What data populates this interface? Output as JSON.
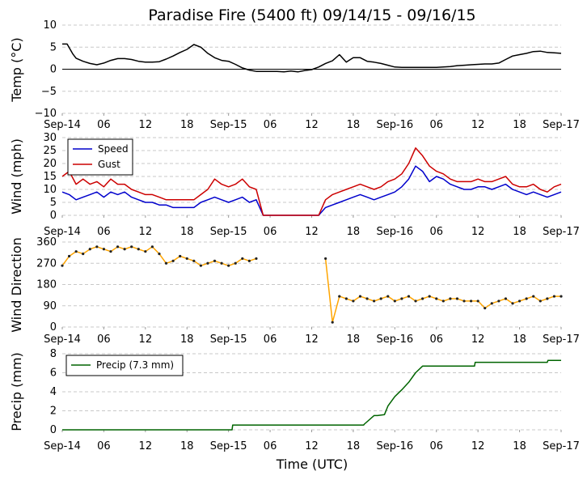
{
  "title": "Paradise Fire (5400 ft) 09/14/15 - 09/16/15",
  "xlabel": "Time (UTC)",
  "x_ticks": [
    "Sep-14",
    "06",
    "12",
    "18",
    "Sep-15",
    "06",
    "12",
    "18",
    "Sep-16",
    "06",
    "12",
    "18",
    "Sep-17"
  ],
  "chart_data": [
    {
      "type": "line",
      "ylabel": "Temp (°C)",
      "ylim": [
        -10,
        10
      ],
      "y_ticks": [
        "10",
        "5",
        "0",
        "−5",
        "−10"
      ],
      "x_hours": [
        0,
        0.7,
        1.5,
        2,
        3,
        4,
        5,
        6,
        7,
        8,
        9,
        10,
        11,
        12,
        13,
        14,
        15,
        16,
        17,
        18,
        19,
        20,
        21,
        22,
        23,
        24,
        25,
        26,
        27,
        28,
        29,
        30,
        31,
        32,
        33,
        34,
        35,
        36,
        37,
        38,
        39,
        40,
        41,
        42,
        43,
        44,
        45,
        46,
        47,
        48,
        49,
        50,
        51,
        52,
        53,
        54,
        55,
        56,
        57,
        58,
        59,
        60,
        61,
        62,
        63,
        64,
        65,
        66,
        67,
        68,
        69,
        70,
        71,
        72
      ],
      "series": [
        {
          "name": "Temp",
          "color": "#000000",
          "values": [
            5.7,
            5.7,
            3.5,
            2.5,
            1.8,
            1.3,
            1.0,
            1.4,
            2.0,
            2.4,
            2.4,
            2.2,
            1.8,
            1.6,
            1.6,
            1.7,
            2.3,
            3.0,
            3.8,
            4.5,
            5.6,
            5.0,
            3.6,
            2.6,
            2.0,
            1.8,
            1.1,
            0.3,
            -0.2,
            -0.5,
            -0.5,
            -0.5,
            -0.5,
            -0.6,
            -0.4,
            -0.6,
            -0.3,
            -0.1,
            0.5,
            1.3,
            1.9,
            3.3,
            1.6,
            2.6,
            2.6,
            1.8,
            1.6,
            1.3,
            0.9,
            0.5,
            0.4,
            0.4,
            0.4,
            0.4,
            0.4,
            0.4,
            0.5,
            0.6,
            0.8,
            0.9,
            1.0,
            1.1,
            1.2,
            1.2,
            1.4,
            2.2,
            3.0,
            3.3,
            3.6,
            4.0,
            4.1,
            3.8,
            3.7,
            3.6
          ]
        }
      ],
      "zero_line": true
    },
    {
      "type": "line",
      "ylabel": "Wind (mph)",
      "ylim": [
        0,
        30
      ],
      "y_ticks": [
        "30",
        "25",
        "20",
        "15",
        "10",
        "5",
        "0"
      ],
      "x_hours": [
        0,
        1,
        2,
        3,
        4,
        5,
        6,
        7,
        8,
        9,
        10,
        11,
        12,
        13,
        14,
        15,
        16,
        17,
        18,
        19,
        20,
        21,
        22,
        23,
        24,
        25,
        26,
        27,
        28,
        29,
        30,
        31,
        32,
        33,
        34,
        35,
        36,
        37,
        38,
        39,
        40,
        41,
        42,
        43,
        44,
        45,
        46,
        47,
        48,
        49,
        50,
        51,
        52,
        53,
        54,
        55,
        56,
        57,
        58,
        59,
        60,
        61,
        62,
        63,
        64,
        65,
        66,
        67,
        68,
        69,
        70,
        71,
        72
      ],
      "series": [
        {
          "name": "Speed",
          "color": "#0000cc",
          "values": [
            9,
            8,
            6,
            7,
            8,
            9,
            7,
            9,
            8,
            9,
            7,
            6,
            5,
            5,
            4,
            4,
            3,
            3,
            3,
            3,
            5,
            6,
            7,
            6,
            5,
            6,
            7,
            5,
            6,
            0,
            0,
            0,
            0,
            0,
            0,
            0,
            0,
            0,
            3,
            4,
            5,
            6,
            7,
            8,
            7,
            6,
            7,
            8,
            9,
            11,
            14,
            19,
            17,
            13,
            15,
            14,
            12,
            11,
            10,
            10,
            11,
            11,
            10,
            11,
            12,
            10,
            9,
            8,
            9,
            8,
            7,
            8,
            9
          ]
        },
        {
          "name": "Gust",
          "color": "#cc0000",
          "values": [
            15,
            17,
            12,
            14,
            12,
            13,
            11,
            14,
            12,
            12,
            10,
            9,
            8,
            8,
            7,
            6,
            6,
            6,
            6,
            6,
            8,
            10,
            14,
            12,
            11,
            12,
            14,
            11,
            10,
            0,
            0,
            0,
            0,
            0,
            0,
            0,
            0,
            0,
            6,
            8,
            9,
            10,
            11,
            12,
            11,
            10,
            11,
            13,
            14,
            16,
            20,
            26,
            23,
            19,
            17,
            16,
            14,
            13,
            13,
            13,
            14,
            13,
            13,
            14,
            15,
            12,
            11,
            11,
            12,
            10,
            9,
            11,
            12
          ]
        }
      ],
      "legend": "upper-left"
    },
    {
      "type": "scatter",
      "ylabel": "Wind Direction",
      "ylim": [
        0,
        360
      ],
      "y_ticks": [
        "360",
        "270",
        "180",
        "90",
        "0"
      ],
      "x_hours": [
        0,
        1,
        2,
        3,
        4,
        5,
        6,
        7,
        8,
        9,
        10,
        11,
        12,
        13,
        14,
        15,
        16,
        17,
        18,
        19,
        20,
        21,
        22,
        23,
        24,
        25,
        26,
        27,
        28,
        29,
        30,
        31,
        32,
        33,
        34,
        35,
        36,
        37,
        38,
        39,
        40,
        41,
        42,
        43,
        44,
        45,
        46,
        47,
        48,
        49,
        50,
        51,
        52,
        53,
        54,
        55,
        56,
        57,
        58,
        59,
        60,
        61,
        62,
        63,
        64,
        65,
        66,
        67,
        68,
        69,
        70,
        71,
        72
      ],
      "series": [
        {
          "name": "Direction",
          "color": "#ffa500",
          "values": [
            260,
            300,
            320,
            310,
            330,
            340,
            330,
            320,
            340,
            330,
            340,
            330,
            320,
            340,
            310,
            270,
            280,
            300,
            290,
            280,
            260,
            270,
            280,
            270,
            260,
            270,
            290,
            280,
            290,
            null,
            null,
            null,
            null,
            null,
            null,
            null,
            null,
            null,
            290,
            20,
            130,
            120,
            110,
            130,
            120,
            110,
            120,
            130,
            110,
            120,
            130,
            110,
            120,
            130,
            120,
            110,
            120,
            120,
            110,
            110,
            110,
            80,
            100,
            110,
            120,
            100,
            110,
            120,
            130,
            110,
            120,
            130,
            130
          ]
        }
      ]
    },
    {
      "type": "line",
      "ylabel": "Precip (mm)",
      "ylim": [
        0,
        8
      ],
      "y_ticks": [
        "8",
        "6",
        "4",
        "2",
        "0"
      ],
      "x_hours": [
        0,
        24.5,
        24.6,
        43.5,
        43.6,
        45,
        45.5,
        46.5,
        47,
        48,
        49,
        50,
        51,
        52,
        55,
        59.5,
        59.6,
        70,
        70.1,
        72
      ],
      "series": [
        {
          "name": "Precip (7.3 mm)",
          "color": "#006400",
          "values": [
            0,
            0,
            0.5,
            0.5,
            0.6,
            1.5,
            1.5,
            1.6,
            2.5,
            3.5,
            4.2,
            5.0,
            6.0,
            6.7,
            6.7,
            6.7,
            7.1,
            7.1,
            7.3,
            7.3
          ]
        }
      ],
      "legend": "upper-left"
    }
  ]
}
